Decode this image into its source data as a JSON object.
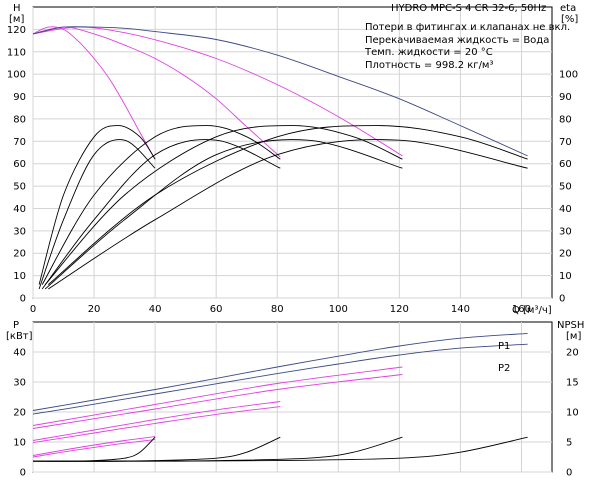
{
  "chart_data": [
    {
      "type": "line",
      "title": "HYDRO MPC-S 4 CR 32-6, 50Hz",
      "ylabel_left": "H",
      "ylabel_left_unit": "[м]",
      "ylabel_right": "eta",
      "ylabel_right_unit": "[%]",
      "xlabel": "Q",
      "xlabel_unit": "[м³/ч]",
      "xlim": [
        0,
        170
      ],
      "ylim_left": [
        0,
        130
      ],
      "ylim_right": [
        0,
        130
      ],
      "x_ticks": [
        "0",
        "20",
        "40",
        "60",
        "80",
        "100",
        "120",
        "140",
        "160"
      ],
      "y_ticks_left": [
        "0",
        "10",
        "20",
        "30",
        "40",
        "50",
        "60",
        "70",
        "80",
        "90",
        "100",
        "110",
        "120"
      ],
      "y_ticks_right": [
        "0",
        "10",
        "20",
        "30",
        "40",
        "50",
        "60",
        "70",
        "80",
        "90",
        "100"
      ],
      "grid": true,
      "notes": [
        "Потери в фитингах и клапанах не вкл.",
        "Перекачиваемая жидкость = Вода",
        "Темп. жидкости = 20 °C",
        "Плотность = 998.2 кг/м³"
      ],
      "colors": {
        "max_curve": "#3b4a82",
        "partial_curve": "#e040e0",
        "efficiency": "#000000"
      },
      "series": [
        {
          "kind": "head",
          "style": "partial",
          "x": [
            0,
            5,
            10,
            15,
            20,
            25,
            30,
            35,
            40
          ],
          "y": [
            118,
            121,
            120,
            114.5,
            107,
            98,
            86.5,
            74,
            62
          ]
        },
        {
          "kind": "head",
          "style": "partial",
          "x": [
            0,
            10,
            20,
            30,
            40,
            50,
            60,
            70,
            81
          ],
          "y": [
            118,
            121,
            118,
            113,
            107,
            99,
            89,
            76.5,
            63
          ]
        },
        {
          "kind": "head",
          "style": "partial",
          "x": [
            0,
            15,
            30,
            45,
            60,
            75,
            90,
            105,
            121
          ],
          "y": [
            118,
            121,
            118.5,
            113.5,
            107,
            98.5,
            88.5,
            77,
            63.5
          ]
        },
        {
          "kind": "head",
          "style": "max",
          "x": [
            0,
            10,
            20,
            30,
            40,
            60,
            80,
            100,
            120,
            140,
            162
          ],
          "y": [
            118,
            121,
            121,
            120.5,
            119,
            115.5,
            108.5,
            99,
            89,
            77,
            63.5
          ]
        },
        {
          "kind": "eta",
          "x": [
            2,
            10,
            20,
            28,
            35,
            40
          ],
          "y": [
            6,
            46,
            72,
            77,
            72,
            62
          ]
        },
        {
          "kind": "eta",
          "x": [
            2,
            10,
            20,
            30,
            40
          ],
          "y": [
            4,
            35,
            64,
            70.5,
            58
          ]
        },
        {
          "kind": "eta",
          "x": [
            3,
            20,
            40,
            57,
            70,
            81
          ],
          "y": [
            6,
            46,
            72,
            77,
            72,
            62
          ]
        },
        {
          "kind": "eta",
          "x": [
            3,
            20,
            40,
            60,
            81
          ],
          "y": [
            4,
            35,
            64,
            70.5,
            58
          ]
        },
        {
          "kind": "eta",
          "x": [
            4,
            30,
            60,
            85,
            105,
            121
          ],
          "y": [
            6,
            46,
            72,
            77,
            72,
            62
          ]
        },
        {
          "kind": "eta",
          "x": [
            4,
            30,
            60,
            90,
            121
          ],
          "y": [
            4,
            35,
            64,
            70.5,
            58
          ]
        },
        {
          "kind": "eta",
          "x": [
            5,
            40,
            80,
            113,
            140,
            162
          ],
          "y": [
            6,
            46,
            72,
            77,
            72,
            62
          ]
        },
        {
          "kind": "eta",
          "x": [
            5,
            40,
            80,
            120,
            162
          ],
          "y": [
            4,
            35,
            64,
            70.5,
            58
          ]
        }
      ]
    },
    {
      "type": "line",
      "ylabel_left": "P",
      "ylabel_left_unit": "[кВт]",
      "ylabel_right": "NPSH",
      "ylabel_right_unit": "[м]",
      "xlim": [
        0,
        170
      ],
      "ylim_left": [
        0,
        50
      ],
      "ylim_right": [
        0,
        25
      ],
      "y_ticks_left": [
        "0",
        "10",
        "20",
        "30",
        "40"
      ],
      "y_ticks_right": [
        "0",
        "5",
        "10",
        "15",
        "20"
      ],
      "grid": true,
      "series": [
        {
          "name": "P1",
          "kind": "power",
          "style": "max",
          "x": [
            0,
            20,
            40,
            60,
            80,
            100,
            120,
            140,
            162
          ],
          "y": [
            20.5,
            24,
            27.5,
            31.2,
            35,
            38.6,
            42,
            44.6,
            46.2
          ]
        },
        {
          "name": "P2",
          "kind": "power",
          "style": "max",
          "x": [
            0,
            20,
            40,
            60,
            80,
            100,
            120,
            140,
            162
          ],
          "y": [
            19.3,
            22.6,
            26,
            29.4,
            32.8,
            36,
            39,
            41.3,
            42.6
          ]
        },
        {
          "kind": "power",
          "style": "partial",
          "x": [
            0,
            40,
            80,
            121
          ],
          "y": [
            15.5,
            22.5,
            29.5,
            35
          ]
        },
        {
          "kind": "power",
          "style": "partial",
          "x": [
            0,
            40,
            80,
            121
          ],
          "y": [
            14.5,
            21,
            27.5,
            32.5
          ]
        },
        {
          "kind": "power",
          "style": "partial",
          "x": [
            0,
            20,
            40,
            60,
            81
          ],
          "y": [
            10.5,
            14,
            17.5,
            20.7,
            23.5
          ]
        },
        {
          "kind": "power",
          "style": "partial",
          "x": [
            0,
            20,
            40,
            60,
            81
          ],
          "y": [
            9.8,
            13,
            16.2,
            19.2,
            21.8
          ]
        },
        {
          "kind": "power",
          "style": "partial",
          "x": [
            0,
            10,
            20,
            30,
            40
          ],
          "y": [
            5.5,
            7.3,
            9,
            10.5,
            11.8
          ]
        },
        {
          "kind": "power",
          "style": "partial",
          "x": [
            0,
            10,
            20,
            30,
            40
          ],
          "y": [
            5,
            6.7,
            8.2,
            9.6,
            10.8
          ]
        },
        {
          "kind": "npsh",
          "x": [
            0,
            10,
            20,
            30,
            35,
            40
          ],
          "y": [
            1.8,
            1.8,
            1.9,
            2.3,
            3.3,
            5.8
          ]
        },
        {
          "kind": "npsh",
          "x": [
            0,
            20,
            40,
            60,
            70,
            81
          ],
          "y": [
            1.8,
            1.8,
            1.9,
            2.3,
            3.3,
            5.8
          ]
        },
        {
          "kind": "npsh",
          "x": [
            0,
            30,
            60,
            90,
            105,
            121
          ],
          "y": [
            1.8,
            1.8,
            1.9,
            2.3,
            3.3,
            5.8
          ]
        },
        {
          "kind": "npsh",
          "x": [
            0,
            40,
            80,
            120,
            140,
            162
          ],
          "y": [
            1.8,
            1.8,
            1.9,
            2.3,
            3.3,
            5.8
          ]
        }
      ]
    }
  ]
}
